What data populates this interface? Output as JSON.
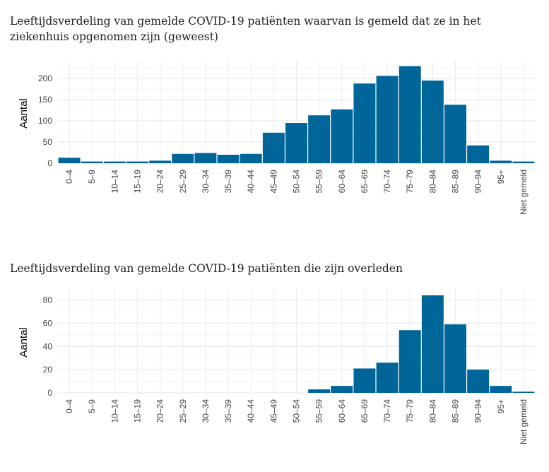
{
  "chart_data": [
    {
      "type": "bar",
      "title": "Leeftijdsverdeling van gemelde COVID-19 patiënten waarvan is gemeld dat ze in het ziekenhuis opgenomen zijn (geweest)",
      "title_lines": [
        "Leeftijdsverdeling van gemelde COVID-19 patiënten waarvan is gemeld dat ze in het",
        "ziekenhuis opgenomen zijn (geweest)"
      ],
      "ylabel": "Aantal",
      "xlabel": "",
      "categories": [
        "0–4",
        "5–9",
        "10–14",
        "15–19",
        "20–24",
        "25–29",
        "30–34",
        "35–39",
        "40–44",
        "45–49",
        "50–54",
        "55–59",
        "60–64",
        "65–69",
        "70–74",
        "75–79",
        "80–84",
        "85–89",
        "90–94",
        "95+",
        "Niet gemeld"
      ],
      "values": [
        13,
        4,
        4,
        4,
        6,
        22,
        24,
        20,
        22,
        72,
        95,
        113,
        127,
        188,
        206,
        229,
        195,
        138,
        42,
        6,
        4
      ],
      "yticks": [
        0,
        50,
        100,
        150,
        200
      ],
      "ylim": [
        0,
        235
      ],
      "grid": true,
      "color": "#006699"
    },
    {
      "type": "bar",
      "title": "Leeftijdsverdeling van gemelde COVID-19 patiënten die zijn overleden",
      "title_lines": [
        "Leeftijdsverdeling van gemelde COVID-19 patiënten die zijn overleden"
      ],
      "ylabel": "Aantal",
      "xlabel": "",
      "categories": [
        "0–4",
        "5–9",
        "10–14",
        "15–19",
        "20–24",
        "25–29",
        "30–34",
        "35–39",
        "40–44",
        "45–49",
        "50–54",
        "55–59",
        "60–64",
        "65–69",
        "70–74",
        "75–79",
        "80–84",
        "85–89",
        "90–94",
        "95+",
        "Niet gemeld"
      ],
      "values": [
        0,
        0,
        0,
        0,
        0,
        0,
        0,
        0,
        0,
        0,
        0,
        3,
        6,
        21,
        26,
        54,
        84,
        59,
        20,
        6,
        1
      ],
      "yticks": [
        0,
        20,
        40,
        60,
        80
      ],
      "ylim": [
        0,
        87
      ],
      "grid": true,
      "color": "#006699"
    }
  ]
}
